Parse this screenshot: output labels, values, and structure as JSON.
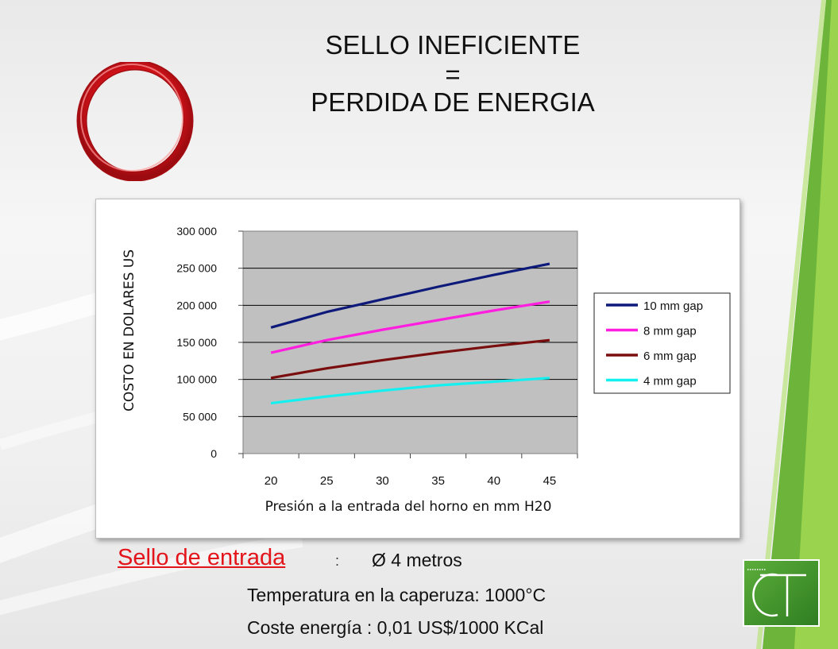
{
  "slide": {
    "title_line1": "SELLO INEFICIENTE",
    "title_line2": "=",
    "title_line3": "PERDIDA DE ENERGIA",
    "seal_label": "Sello de entrada ",
    "seal_colon": ":",
    "seal_value": "Ø 4 metros",
    "temperature_line": "Temperatura en la caperuza: 1000°C",
    "energy_cost_line": "Coste energía : 0,01 US$/1000 KCal",
    "colors": {
      "accent_red": "#e3141a",
      "ring_red": "#e0141b",
      "green_stripe": "#6db53a",
      "plot_background": "#c0c0c0"
    }
  },
  "chart_data": {
    "type": "line",
    "title": "",
    "xlabel": "Presión a la entrada del horno en mm H20",
    "ylabel": "COSTO EN  DOLARES US",
    "x": [
      20,
      25,
      30,
      35,
      40,
      45
    ],
    "x_tick_labels": [
      "20",
      "25",
      "30",
      "35",
      "40",
      "45"
    ],
    "ylim": [
      0,
      300000
    ],
    "y_ticks": [
      0,
      50000,
      100000,
      150000,
      200000,
      250000,
      300000
    ],
    "y_tick_labels": [
      "0",
      "50 000",
      "100 000",
      "150 000",
      "200 000",
      "250 000",
      "300 000"
    ],
    "grid": true,
    "legend_position": "right",
    "series": [
      {
        "name": "10 mm gap",
        "color": "#0d1a7a",
        "values": [
          170000,
          191000,
          208000,
          225000,
          241000,
          256000
        ]
      },
      {
        "name": "8 mm gap",
        "color": "#ff1ee0",
        "values": [
          136000,
          153000,
          167000,
          180000,
          193000,
          205000
        ]
      },
      {
        "name": "6 mm gap",
        "color": "#7a0d0d",
        "values": [
          102000,
          115000,
          126000,
          136000,
          145000,
          153000
        ]
      },
      {
        "name": "4 mm gap",
        "color": "#14f0f0",
        "values": [
          68000,
          77000,
          85000,
          92000,
          97000,
          102000
        ]
      }
    ]
  }
}
